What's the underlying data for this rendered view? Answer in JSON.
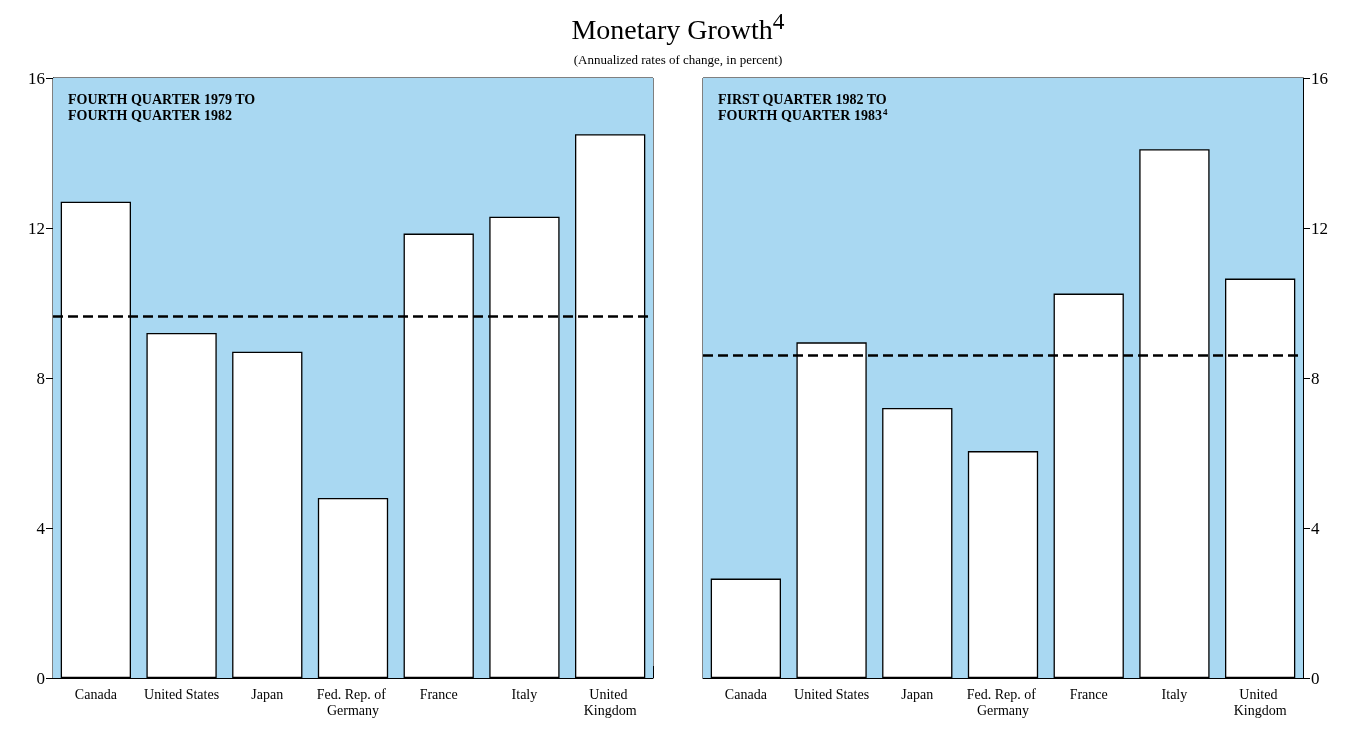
{
  "chart_data": [
    {
      "type": "bar",
      "title": "FOURTH QUARTER 1979 TO FOURTH QUARTER 1982",
      "categories": [
        "Canada",
        "United States",
        "Japan",
        "Fed. Rep. of Germany",
        "France",
        "Italy",
        "United Kingdom"
      ],
      "series": [
        {
          "color": "#ffffff",
          "values": [
            12.7,
            9.2,
            8.7,
            4.8,
            11.85,
            12.3,
            14.5
          ]
        }
      ],
      "ylim": [
        0,
        16
      ],
      "yticks": [
        0,
        4,
        8,
        12,
        16
      ],
      "grid": false,
      "bands": [
        {
          "axis": "y",
          "from": 0,
          "to": 16,
          "color": "#a9d8f2"
        }
      ],
      "ref_lines": [
        {
          "axis": "y",
          "value": 9.65,
          "color": "#000000",
          "line_style": "dashed"
        }
      ],
      "annotations": [
        "Monetary Growth$^{4}$",
        "(Annualized rates of change, in percent)"
      ]
    },
    {
      "type": "bar",
      "title": "FIRST QUARTER 1982 TO FOURTH QUARTER 1983$^{4}$",
      "categories": [
        "Canada",
        "United States",
        "Japan",
        "Fed. Rep. of Germany",
        "France",
        "Italy",
        "United Kingdom"
      ],
      "series": [
        {
          "color": "#ffffff",
          "values": [
            2.65,
            8.95,
            7.2,
            6.05,
            10.25,
            14.1,
            10.65
          ],
          "axis": "y2"
        }
      ],
      "y2lim": [
        0,
        16
      ],
      "y2ticks": [
        0,
        4,
        8,
        12,
        16
      ],
      "grid": false,
      "bands": [
        {
          "axis": "y2",
          "from": 0,
          "to": 16,
          "color": "#a9d8f2"
        }
      ],
      "ref_lines": [
        {
          "axis": "y2",
          "value": 8.6,
          "color": "#000000",
          "line_style": "dashed"
        }
      ]
    }
  ]
}
